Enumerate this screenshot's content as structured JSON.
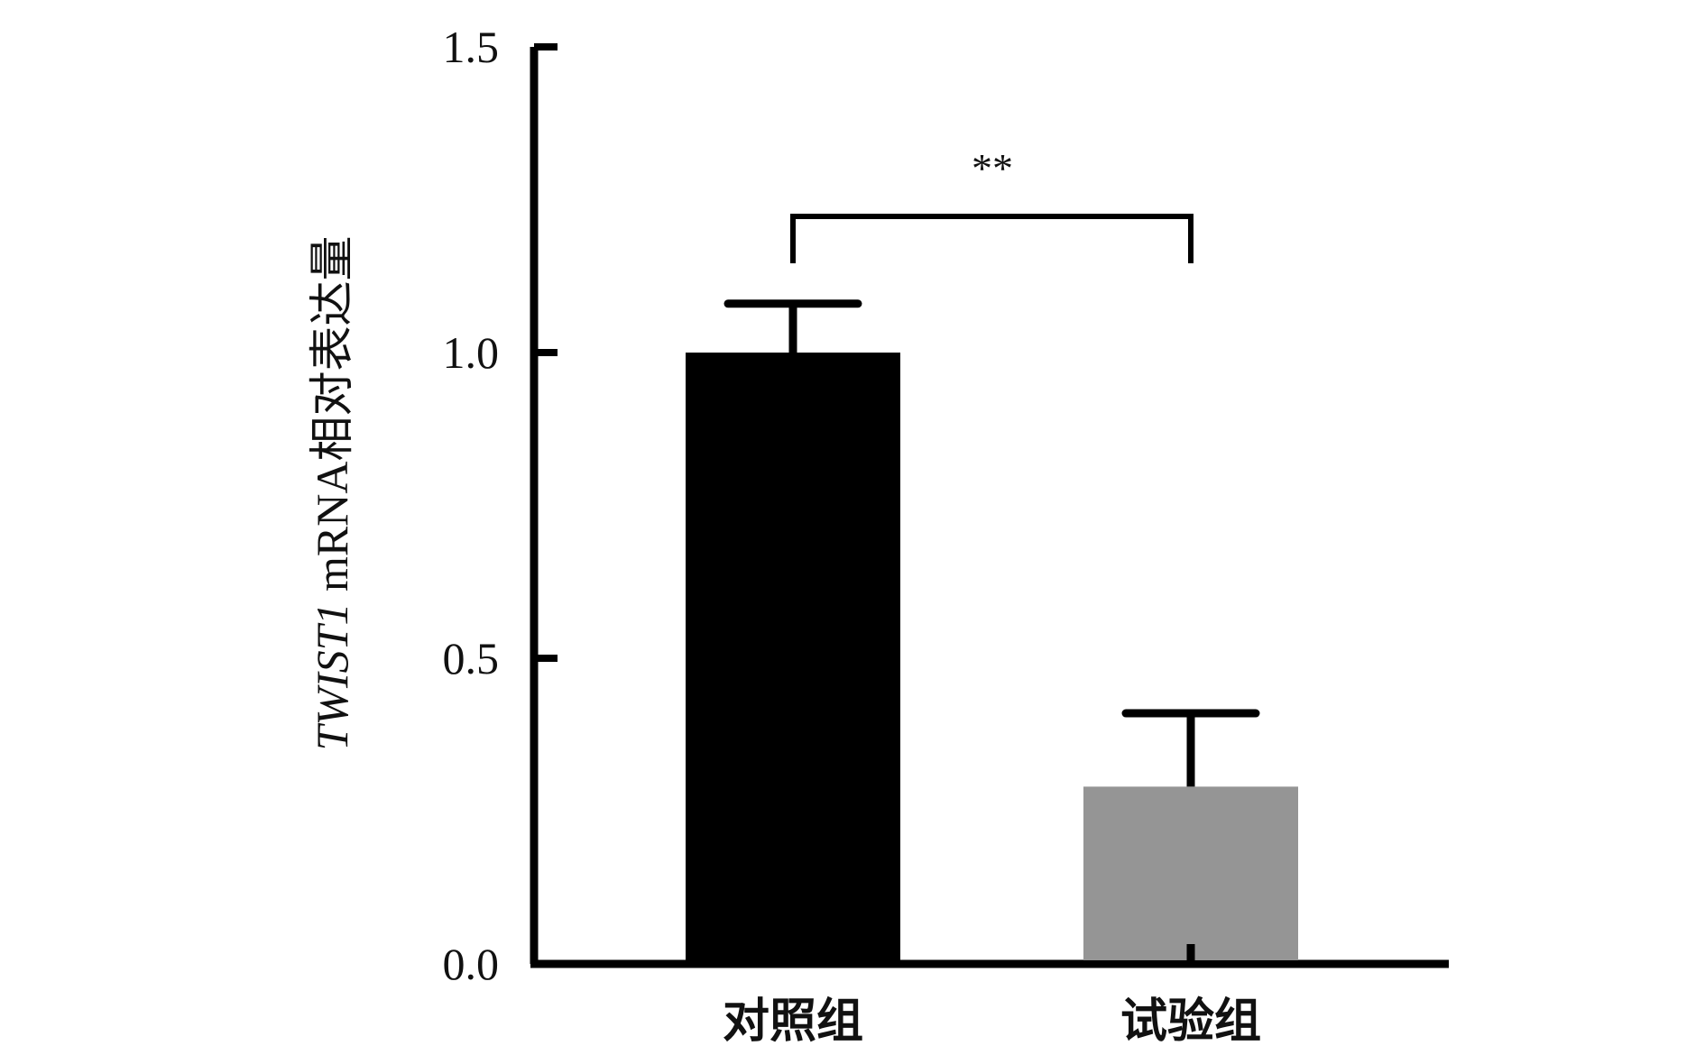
{
  "chart_data": {
    "type": "bar",
    "categories": [
      "对照组",
      "试验组"
    ],
    "values": [
      1.0,
      0.29
    ],
    "errors": [
      0.08,
      0.12
    ],
    "colors": [
      "#000000",
      "#959595"
    ],
    "ylabel_italic": "TWIST1",
    "ylabel_rest": " mRNA相对表达量",
    "ylim": [
      0,
      1.5
    ],
    "yticks": [
      "0.0",
      "0.5",
      "1.0",
      "1.5"
    ],
    "significance": "**",
    "grid": false
  }
}
